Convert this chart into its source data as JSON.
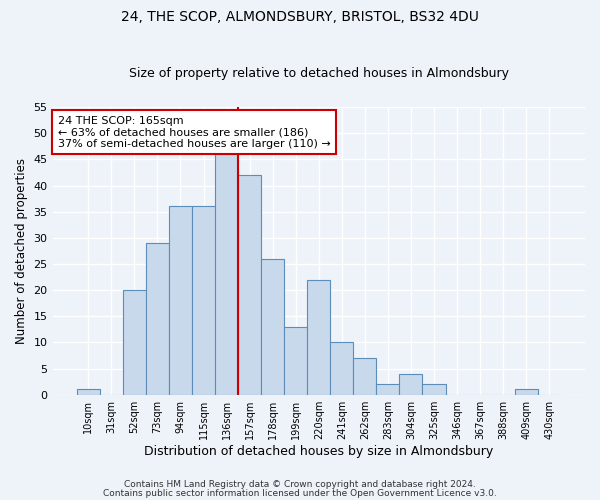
{
  "title": "24, THE SCOP, ALMONDSBURY, BRISTOL, BS32 4DU",
  "subtitle": "Size of property relative to detached houses in Almondsbury",
  "xlabel": "Distribution of detached houses by size in Almondsbury",
  "ylabel": "Number of detached properties",
  "footnote1": "Contains HM Land Registry data © Crown copyright and database right 2024.",
  "footnote2": "Contains public sector information licensed under the Open Government Licence v3.0.",
  "bin_labels": [
    "10sqm",
    "31sqm",
    "52sqm",
    "73sqm",
    "94sqm",
    "115sqm",
    "136sqm",
    "157sqm",
    "178sqm",
    "199sqm",
    "220sqm",
    "241sqm",
    "262sqm",
    "283sqm",
    "304sqm",
    "325sqm",
    "346sqm",
    "367sqm",
    "388sqm",
    "409sqm",
    "430sqm"
  ],
  "bar_values": [
    1,
    0,
    20,
    29,
    36,
    36,
    46,
    42,
    26,
    13,
    22,
    10,
    7,
    2,
    4,
    2,
    0,
    0,
    0,
    1,
    0
  ],
  "bar_color": "#c9d9ec",
  "bar_edge_color": "#5b8db8",
  "vline_color": "#cc0000",
  "ylim": [
    0,
    55
  ],
  "yticks": [
    0,
    5,
    10,
    15,
    20,
    25,
    30,
    35,
    40,
    45,
    50,
    55
  ],
  "annotation_line1": "24 THE SCOP: 165sqm",
  "annotation_line2": "← 63% of detached houses are smaller (186)",
  "annotation_line3": "37% of semi-detached houses are larger (110) →",
  "annotation_box_color": "#ffffff",
  "annotation_box_edge": "#cc0000",
  "bg_color": "#eef2f9",
  "grid_color": "#ffffff"
}
